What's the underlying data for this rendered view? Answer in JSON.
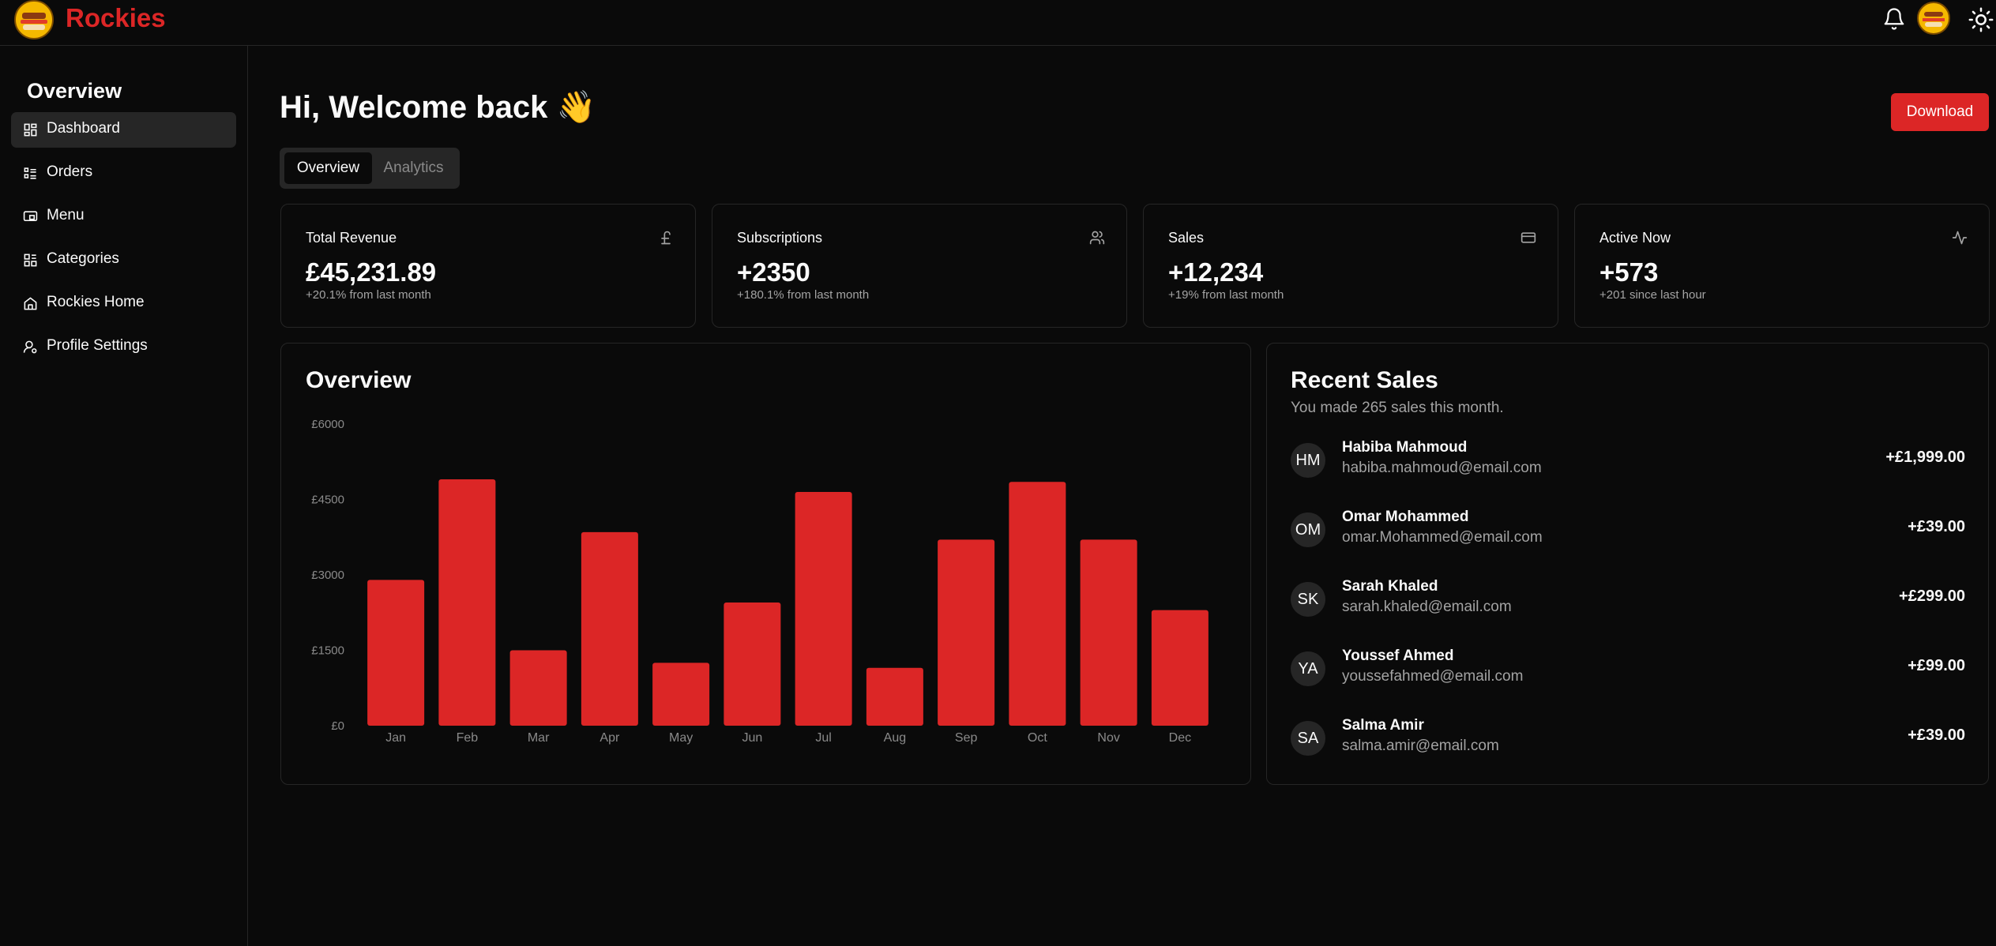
{
  "app": {
    "brand": "Rockies"
  },
  "sidebar": {
    "title": "Overview",
    "items": [
      {
        "label": "Dashboard",
        "icon": "dashboard-icon",
        "active": true
      },
      {
        "label": "Orders",
        "icon": "list-icon"
      },
      {
        "label": "Menu",
        "icon": "menu-icon"
      },
      {
        "label": "Categories",
        "icon": "categories-icon"
      },
      {
        "label": "Rockies Home",
        "icon": "home-icon"
      },
      {
        "label": "Profile Settings",
        "icon": "user-settings-icon"
      }
    ]
  },
  "main": {
    "greeting": "Hi, Welcome back 👋",
    "download_label": "Download",
    "tabs": [
      {
        "label": "Overview"
      },
      {
        "label": "Analytics"
      }
    ],
    "stats": [
      {
        "title": "Total Revenue",
        "value": "£45,231.89",
        "sub": "+20.1% from last month",
        "icon": "pound-icon"
      },
      {
        "title": "Subscriptions",
        "value": "+2350",
        "sub": "+180.1% from last month",
        "icon": "users-icon"
      },
      {
        "title": "Sales",
        "value": "+12,234",
        "sub": "+19% from last month",
        "icon": "credit-card-icon"
      },
      {
        "title": "Active Now",
        "value": "+573",
        "sub": "+201 since last hour",
        "icon": "activity-icon"
      }
    ],
    "overview_title": "Overview",
    "recent_sales": {
      "title": "Recent Sales",
      "subtitle": "You made 265 sales this month.",
      "items": [
        {
          "initials": "HM",
          "name": "Habiba Mahmoud",
          "email": "habiba.mahmoud@email.com",
          "amount": "+£1,999.00"
        },
        {
          "initials": "OM",
          "name": "Omar Mohammed",
          "email": "omar.Mohammed@email.com",
          "amount": "+£39.00"
        },
        {
          "initials": "SK",
          "name": "Sarah Khaled",
          "email": "sarah.khaled@email.com",
          "amount": "+£299.00"
        },
        {
          "initials": "YA",
          "name": "Youssef Ahmed",
          "email": "youssefahmed@email.com",
          "amount": "+£99.00"
        },
        {
          "initials": "SA",
          "name": "Salma Amir",
          "email": "salma.amir@email.com",
          "amount": "+£39.00"
        }
      ]
    }
  },
  "colors": {
    "accent": "#dc2626",
    "background": "#0a0a0a",
    "border": "#262626",
    "muted": "#a3a3a3"
  },
  "chart_data": {
    "type": "bar",
    "title": "Overview",
    "categories": [
      "Jan",
      "Feb",
      "Mar",
      "Apr",
      "May",
      "Jun",
      "Jul",
      "Aug",
      "Sep",
      "Oct",
      "Nov",
      "Dec"
    ],
    "values": [
      2900,
      4900,
      1500,
      3850,
      1250,
      2450,
      4650,
      1150,
      3700,
      4850,
      3700,
      2300
    ],
    "ylim": [
      0,
      6000
    ],
    "yticks": [
      0,
      1500,
      3000,
      4500,
      6000
    ],
    "ytick_labels": [
      "£0",
      "£1500",
      "£3000",
      "£4500",
      "£6000"
    ],
    "grid": false
  }
}
